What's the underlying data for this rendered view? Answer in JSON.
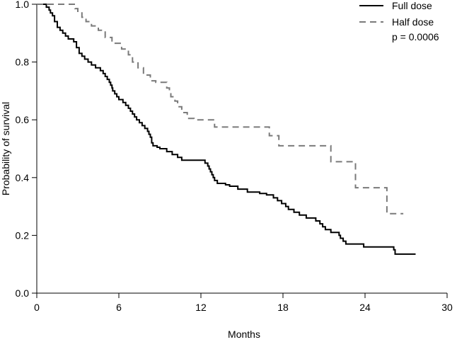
{
  "chart_data": {
    "type": "line",
    "title": "",
    "xlabel": "Months",
    "ylabel": "Probability of survival",
    "xlim": [
      0,
      30
    ],
    "ylim": [
      0,
      1.0
    ],
    "x_ticks": [
      0,
      6,
      12,
      18,
      24,
      30
    ],
    "x_tick_labels": [
      "0",
      "6",
      "12",
      "18",
      "24",
      "30"
    ],
    "y_ticks": [
      0,
      0.2,
      0.4,
      0.6,
      0.8,
      1.0
    ],
    "y_tick_labels": [
      "0.0",
      "0.2",
      "0.4",
      "0.6",
      "0.8",
      "1.0"
    ],
    "grid": false,
    "legend_position": "top-right",
    "annotation": "p = 0.0006",
    "series": [
      {
        "name": "Full dose",
        "style": "solid",
        "color": "#000000",
        "step": true,
        "points": [
          [
            0,
            1.0
          ],
          [
            0.5,
            1.0
          ],
          [
            0.7,
            0.99
          ],
          [
            0.9,
            0.98
          ],
          [
            1.0,
            0.97
          ],
          [
            1.15,
            0.96
          ],
          [
            1.3,
            0.94
          ],
          [
            1.5,
            0.92
          ],
          [
            1.7,
            0.91
          ],
          [
            1.9,
            0.9
          ],
          [
            2.1,
            0.89
          ],
          [
            2.3,
            0.88
          ],
          [
            2.7,
            0.87
          ],
          [
            2.9,
            0.85
          ],
          [
            3.1,
            0.83
          ],
          [
            3.3,
            0.82
          ],
          [
            3.5,
            0.81
          ],
          [
            3.75,
            0.8
          ],
          [
            4.0,
            0.79
          ],
          [
            4.3,
            0.78
          ],
          [
            4.65,
            0.77
          ],
          [
            4.85,
            0.76
          ],
          [
            5.0,
            0.75
          ],
          [
            5.15,
            0.74
          ],
          [
            5.3,
            0.73
          ],
          [
            5.4,
            0.72
          ],
          [
            5.5,
            0.71
          ],
          [
            5.55,
            0.7
          ],
          [
            5.7,
            0.69
          ],
          [
            5.85,
            0.68
          ],
          [
            6.0,
            0.67
          ],
          [
            6.3,
            0.66
          ],
          [
            6.5,
            0.65
          ],
          [
            6.7,
            0.64
          ],
          [
            6.85,
            0.63
          ],
          [
            7.0,
            0.62
          ],
          [
            7.15,
            0.61
          ],
          [
            7.3,
            0.6
          ],
          [
            7.5,
            0.59
          ],
          [
            7.7,
            0.58
          ],
          [
            7.9,
            0.57
          ],
          [
            8.1,
            0.56
          ],
          [
            8.2,
            0.55
          ],
          [
            8.3,
            0.54
          ],
          [
            8.4,
            0.52
          ],
          [
            8.5,
            0.51
          ],
          [
            8.8,
            0.505
          ],
          [
            9.0,
            0.5
          ],
          [
            9.5,
            0.49
          ],
          [
            9.9,
            0.48
          ],
          [
            10.3,
            0.47
          ],
          [
            10.6,
            0.46
          ],
          [
            11.8,
            0.46
          ],
          [
            12.3,
            0.45
          ],
          [
            12.5,
            0.44
          ],
          [
            12.6,
            0.43
          ],
          [
            12.7,
            0.42
          ],
          [
            12.8,
            0.41
          ],
          [
            12.9,
            0.4
          ],
          [
            13.0,
            0.39
          ],
          [
            13.2,
            0.38
          ],
          [
            13.8,
            0.375
          ],
          [
            14.1,
            0.37
          ],
          [
            14.7,
            0.36
          ],
          [
            15.4,
            0.35
          ],
          [
            16.3,
            0.345
          ],
          [
            16.8,
            0.34
          ],
          [
            17.3,
            0.33
          ],
          [
            17.6,
            0.32
          ],
          [
            17.9,
            0.31
          ],
          [
            18.2,
            0.3
          ],
          [
            18.4,
            0.29
          ],
          [
            18.8,
            0.28
          ],
          [
            19.2,
            0.27
          ],
          [
            19.7,
            0.26
          ],
          [
            20.4,
            0.25
          ],
          [
            20.7,
            0.24
          ],
          [
            20.9,
            0.23
          ],
          [
            21.1,
            0.22
          ],
          [
            21.5,
            0.21
          ],
          [
            22.1,
            0.2
          ],
          [
            22.2,
            0.19
          ],
          [
            22.4,
            0.18
          ],
          [
            22.6,
            0.17
          ],
          [
            23.9,
            0.16
          ],
          [
            26.1,
            0.15
          ],
          [
            26.2,
            0.135
          ],
          [
            27.7,
            0.135
          ]
        ]
      },
      {
        "name": "Half dose",
        "style": "dashed",
        "color": "#7a7a7a",
        "step": true,
        "points": [
          [
            0,
            1.0
          ],
          [
            2.7,
            1.0
          ],
          [
            2.8,
            0.985
          ],
          [
            3.0,
            0.97
          ],
          [
            3.3,
            0.955
          ],
          [
            3.6,
            0.94
          ],
          [
            4.0,
            0.925
          ],
          [
            4.5,
            0.91
          ],
          [
            5.0,
            0.885
          ],
          [
            5.5,
            0.865
          ],
          [
            6.2,
            0.845
          ],
          [
            6.7,
            0.825
          ],
          [
            7.0,
            0.8
          ],
          [
            7.4,
            0.78
          ],
          [
            7.8,
            0.755
          ],
          [
            8.3,
            0.735
          ],
          [
            8.7,
            0.73
          ],
          [
            9.2,
            0.73
          ],
          [
            9.5,
            0.71
          ],
          [
            9.7,
            0.695
          ],
          [
            9.8,
            0.68
          ],
          [
            10.1,
            0.665
          ],
          [
            10.3,
            0.645
          ],
          [
            10.6,
            0.625
          ],
          [
            11.0,
            0.605
          ],
          [
            11.5,
            0.6
          ],
          [
            12.9,
            0.6
          ],
          [
            13.0,
            0.575
          ],
          [
            16.9,
            0.575
          ],
          [
            17.0,
            0.545
          ],
          [
            17.6,
            0.545
          ],
          [
            17.7,
            0.51
          ],
          [
            21.4,
            0.51
          ],
          [
            21.5,
            0.455
          ],
          [
            23.2,
            0.455
          ],
          [
            23.3,
            0.365
          ],
          [
            25.4,
            0.365
          ],
          [
            25.6,
            0.275
          ],
          [
            26.8,
            0.275
          ]
        ]
      }
    ]
  }
}
